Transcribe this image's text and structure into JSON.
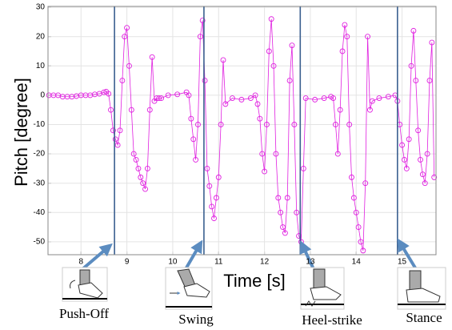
{
  "chart_data": {
    "type": "line",
    "x_label": "Time [s]",
    "y_label": "Pitch [degree]",
    "x": [
      7.3,
      7.4,
      7.5,
      7.6,
      7.7,
      7.8,
      7.9,
      8.0,
      8.1,
      8.2,
      8.3,
      8.4,
      8.5,
      8.55,
      8.6,
      8.65,
      8.7,
      8.75,
      8.8,
      8.85,
      8.9,
      8.95,
      9.0,
      9.05,
      9.1,
      9.15,
      9.2,
      9.25,
      9.3,
      9.35,
      9.4,
      9.45,
      9.5,
      9.55,
      9.6,
      9.65,
      9.7,
      9.75,
      9.9,
      10.1,
      10.3,
      10.35,
      10.4,
      10.45,
      10.5,
      10.55,
      10.6,
      10.65,
      10.7,
      10.75,
      10.8,
      10.85,
      10.9,
      10.95,
      11.0,
      11.05,
      11.1,
      11.15,
      11.3,
      11.5,
      11.7,
      11.8,
      11.85,
      11.9,
      11.95,
      12.0,
      12.05,
      12.1,
      12.15,
      12.2,
      12.25,
      12.3,
      12.35,
      12.4,
      12.45,
      12.5,
      12.55,
      12.6,
      12.65,
      12.7,
      12.75,
      12.8,
      12.85,
      12.9,
      13.1,
      13.3,
      13.45,
      13.5,
      13.55,
      13.6,
      13.65,
      13.7,
      13.75,
      13.8,
      13.85,
      13.9,
      13.95,
      14.0,
      14.05,
      14.1,
      14.15,
      14.2,
      14.25,
      14.3,
      14.35,
      14.5,
      14.7,
      14.85,
      14.9,
      14.95,
      15.0,
      15.05,
      15.1,
      15.15,
      15.2,
      15.25,
      15.3,
      15.35,
      15.4,
      15.45,
      15.5,
      15.55,
      15.6,
      15.65,
      15.7
    ],
    "series": [
      {
        "color": "#e020e0",
        "values": [
          0,
          0,
          0,
          -0.5,
          -0.5,
          -0.5,
          -0.3,
          0,
          0,
          0,
          0.3,
          0.5,
          1,
          1.2,
          0.5,
          -5,
          -12,
          -15,
          -17,
          -12,
          5,
          20,
          23,
          10,
          -5,
          -20,
          -22,
          -25,
          -28,
          -30,
          -32,
          -25,
          -5,
          13,
          -2,
          -1,
          -1,
          -1,
          0,
          0.3,
          1,
          0,
          -8,
          -15,
          -22,
          -10,
          20,
          25.5,
          5,
          -25,
          -31,
          -38,
          -42,
          -35,
          -28,
          -10,
          12,
          -3,
          -1,
          -1.5,
          -1,
          0,
          -3,
          -8,
          -20,
          -26,
          -10,
          15,
          26,
          10,
          -20,
          -35,
          -40,
          -45,
          -47,
          -35,
          5,
          17,
          -10,
          -40,
          -48,
          -50,
          -25,
          -1,
          -1.5,
          -1,
          -0.5,
          -1,
          -10,
          -20,
          -5,
          15,
          24,
          20,
          -10,
          -28,
          -35,
          -40,
          -45,
          -50,
          -53,
          -30,
          20,
          -5,
          -2,
          -1,
          -0.5,
          0,
          -2,
          -10,
          -17,
          -22,
          -25,
          -15,
          10,
          22,
          5,
          -12,
          -22,
          -27,
          -30,
          -20,
          5,
          18,
          -28
        ]
      }
    ],
    "xlim": [
      7.28,
      15.74
    ],
    "xticks": [
      8,
      9,
      10,
      11,
      12,
      13,
      14,
      15
    ],
    "ylim": [
      -54.4,
      30.3
    ],
    "yticks": [
      -50,
      -40,
      -30,
      -20,
      -10,
      0,
      10,
      20,
      30
    ],
    "grid": true,
    "events": [
      {
        "label": "Push-Off",
        "x": 8.73
      },
      {
        "label": "Swing",
        "x": 10.68
      },
      {
        "label": "Heel-strike",
        "x": 12.78
      },
      {
        "label": "Stance",
        "x": 14.9
      }
    ]
  }
}
